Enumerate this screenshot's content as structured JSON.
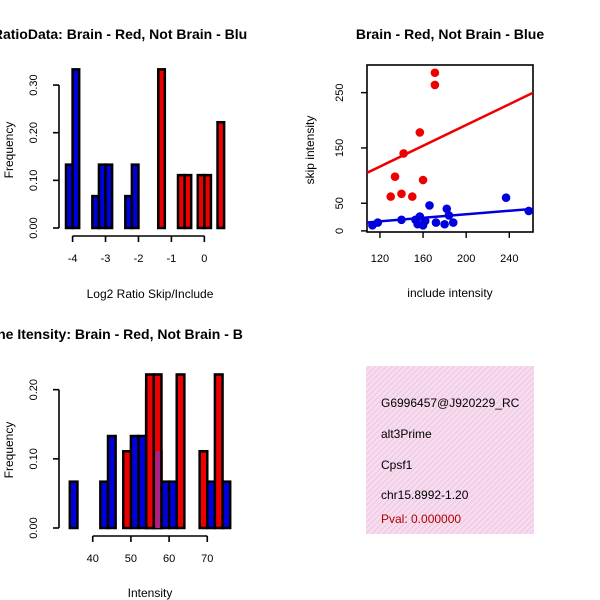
{
  "colors": {
    "red": "#ee0000",
    "blue": "#0000dd",
    "overlap": "#aa2288",
    "pink_box": "#f6dcee",
    "pval": "#b00000"
  },
  "chart_data": [
    {
      "id": "ratio",
      "type": "bar",
      "title": "RatioData: Brain - Red, Not Brain - Blu",
      "xlabel": "Log2 Ratio Skip/Include",
      "ylabel": "Frequency",
      "xlim": [
        -4.2,
        0.9
      ],
      "ylim": [
        0,
        0.34
      ],
      "xticks": [
        "-4",
        "-3",
        "-2",
        "-1",
        "0"
      ],
      "yticks": [
        "0.00",
        "0.10",
        "0.20",
        "0.30"
      ],
      "bin_width": 0.2,
      "series": [
        {
          "name": "Not Brain",
          "color": "blue",
          "bars": [
            [
              -4.1,
              0.133
            ],
            [
              -3.9,
              0.333
            ],
            [
              -3.3,
              0.067
            ],
            [
              -3.1,
              0.133
            ],
            [
              -2.9,
              0.133
            ],
            [
              -2.3,
              0.067
            ],
            [
              -2.1,
              0.133
            ]
          ]
        },
        {
          "name": "Brain",
          "color": "red",
          "bars": [
            [
              -1.3,
              0.333
            ],
            [
              -0.7,
              0.111
            ],
            [
              -0.5,
              0.111
            ],
            [
              -0.1,
              0.111
            ],
            [
              0.1,
              0.111
            ],
            [
              0.5,
              0.222
            ]
          ]
        }
      ]
    },
    {
      "id": "scatter",
      "type": "scatter",
      "title": "Brain - Red, Not Brain - Blue",
      "xlabel": "include intensity",
      "ylabel": "skip intensity",
      "xlim": [
        108,
        262
      ],
      "ylim": [
        -2,
        300
      ],
      "xticks": [
        120,
        160,
        200,
        240
      ],
      "yticks": [
        0,
        50,
        150,
        250
      ],
      "series": [
        {
          "name": "Brain",
          "color": "red",
          "points": [
            [
              134,
              98
            ],
            [
              130,
              62
            ],
            [
              140,
              67
            ],
            [
              142,
              140
            ],
            [
              150,
              62
            ],
            [
              157,
              178
            ],
            [
              160,
              92
            ],
            [
              171,
              286
            ],
            [
              171,
              264
            ]
          ],
          "fit": {
            "intercept": 3.5,
            "slope": 0.94
          }
        },
        {
          "name": "Not Brain",
          "color": "blue",
          "points": [
            [
              113,
              10
            ],
            [
              118,
              15
            ],
            [
              140,
              20
            ],
            [
              153,
              20
            ],
            [
              155,
              12
            ],
            [
              157,
              26
            ],
            [
              160,
              10
            ],
            [
              162,
              18
            ],
            [
              166,
              46
            ],
            [
              172,
              15
            ],
            [
              180,
              12
            ],
            [
              182,
              40
            ],
            [
              184,
              28
            ],
            [
              188,
              15
            ],
            [
              237,
              60
            ],
            [
              258,
              36
            ]
          ],
          "fit": {
            "intercept": -2.0,
            "slope": 0.16
          }
        }
      ]
    },
    {
      "id": "intensity",
      "type": "bar",
      "title": "ne Itensity: Brain - Red, Not Brain - B",
      "xlabel": "Intensity",
      "ylabel": "Frequency",
      "xlim": [
        33,
        77
      ],
      "ylim": [
        0,
        0.24
      ],
      "xticks": [
        "40",
        "50",
        "60",
        "70"
      ],
      "yticks": [
        "0.00",
        "0.10",
        "0.20"
      ],
      "bin_width": 2,
      "series": [
        {
          "name": "Not Brain",
          "color": "blue",
          "bars": [
            [
              35,
              0.067
            ],
            [
              43,
              0.067
            ],
            [
              45,
              0.133
            ],
            [
              51,
              0.133
            ],
            [
              53,
              0.133
            ],
            [
              55,
              0.2
            ],
            [
              57,
              0.111
            ],
            [
              59,
              0.067
            ],
            [
              61,
              0.067
            ],
            [
              71,
              0.067
            ],
            [
              75,
              0.067
            ]
          ]
        },
        {
          "name": "Brain",
          "color": "red",
          "bars": [
            [
              49,
              0.111
            ],
            [
              55,
              0.222
            ],
            [
              57,
              0.222
            ],
            [
              63,
              0.222
            ],
            [
              69,
              0.111
            ],
            [
              73,
              0.222
            ]
          ]
        }
      ],
      "overlap": [
        [
          57,
          0.111
        ]
      ]
    }
  ],
  "info": {
    "id": "G6996457@J920229_RC",
    "type": "alt3Prime",
    "gene": "Cpsf1",
    "location": "chr15.8992-1.20",
    "pval": "Pval: 0.000000"
  }
}
